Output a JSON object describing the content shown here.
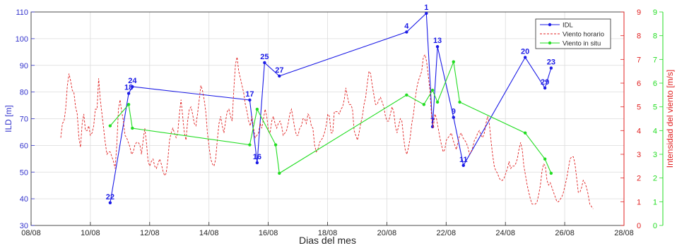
{
  "chart_data": {
    "type": "line",
    "xlabel": "Dias del mes",
    "x_ticks": [
      "08/08",
      "10/08",
      "12/08",
      "14/08",
      "16/08",
      "18/08",
      "20/08",
      "22/08",
      "24/08",
      "26/08",
      "28/08"
    ],
    "xlim": [
      "08/08",
      "28/08"
    ],
    "grid": true,
    "legend_position": "top-right",
    "axes": {
      "left": {
        "label": "ILD [m]",
        "ylim": [
          30,
          110
        ],
        "ticks": [
          30,
          40,
          50,
          60,
          70,
          80,
          90,
          100,
          110
        ],
        "color": "#3333cc"
      },
      "right1": {
        "label": "Intensidad del viento [m/s]",
        "ylim": [
          0,
          9
        ],
        "ticks": [
          0,
          1,
          2,
          3,
          4,
          5,
          6,
          7,
          8,
          9
        ],
        "color": "#e02020"
      },
      "right2": {
        "label": "",
        "ylim": [
          0,
          9
        ],
        "ticks": [
          0,
          1,
          2,
          3,
          4,
          5,
          6,
          7,
          8,
          9
        ],
        "color": "#22dd22"
      }
    },
    "series": [
      {
        "name": "IDL",
        "axis": "left",
        "color": "#1a1ae6",
        "style": "solid-markers",
        "points": [
          {
            "x": "10/08 16:00",
            "y": 38.5,
            "label": "22"
          },
          {
            "x": "11/08 07:00",
            "y": 79.5,
            "label": "18"
          },
          {
            "x": "11/08 10:00",
            "y": 82,
            "label": "24"
          },
          {
            "x": "15/08 09:00",
            "y": 77,
            "label": "17"
          },
          {
            "x": "15/08 15:00",
            "y": 53.5,
            "label": "16"
          },
          {
            "x": "15/08 21:00",
            "y": 91,
            "label": "25"
          },
          {
            "x": "16/08 09:00",
            "y": 86,
            "label": "27"
          },
          {
            "x": "20/08 16:00",
            "y": 102.5,
            "label": "4"
          },
          {
            "x": "21/08 08:00",
            "y": 109.5,
            "label": "1"
          },
          {
            "x": "21/08 13:00",
            "y": 67,
            "label": "7"
          },
          {
            "x": "21/08 17:00",
            "y": 97,
            "label": "13"
          },
          {
            "x": "22/08 06:00",
            "y": 70.5,
            "label": "9"
          },
          {
            "x": "22/08 14:00",
            "y": 52.5,
            "label": "11"
          },
          {
            "x": "24/08 16:00",
            "y": 93,
            "label": "20"
          },
          {
            "x": "25/08 08:00",
            "y": 81.5,
            "label": "29"
          },
          {
            "x": "25/08 13:00",
            "y": 89,
            "label": "23"
          }
        ]
      },
      {
        "name": "Viento horario",
        "axis": "right1",
        "color": "#e02020",
        "style": "dashed",
        "x_start": "09/08 00:00",
        "x_end": "26/08 23:00",
        "values": [
          3.7,
          4.3,
          4.4,
          4.9,
          5.9,
          6.4,
          6.1,
          5.7,
          5.6,
          5.0,
          4.7,
          3.7,
          3.3,
          4.3,
          4.7,
          4.0,
          4.0,
          4.2,
          3.8,
          3.9,
          4.2,
          4.9,
          4.9,
          6.2,
          5.3,
          4.7,
          4.1,
          3.5,
          3.0,
          3.1,
          3.1,
          2.9,
          2.7,
          2.4,
          3.4,
          4.9,
          5.3,
          4.8,
          4.4,
          3.8,
          3.7,
          3.5,
          3.3,
          3.0,
          3.1,
          3.4,
          3.5,
          3.5,
          3.4,
          3.0,
          3.6,
          4.1,
          3.5,
          2.7,
          2.5,
          2.7,
          2.8,
          2.5,
          2.4,
          2.6,
          2.8,
          2.6,
          2.3,
          2.1,
          2.2,
          2.8,
          3.6,
          3.9,
          4.1,
          3.9,
          3.7,
          3.9,
          4.7,
          5.3,
          4.6,
          3.9,
          3.6,
          4.4,
          4.9,
          5.0,
          4.7,
          4.3,
          4.2,
          4.7,
          5.3,
          5.9,
          5.7,
          5.3,
          4.8,
          3.9,
          3.3,
          2.8,
          2.6,
          2.5,
          2.8,
          3.6,
          4.3,
          4.6,
          4.2,
          3.9,
          4.4,
          4.8,
          4.9,
          4.6,
          4.4,
          5.7,
          6.8,
          7.1,
          6.5,
          6.2,
          5.9,
          5.6,
          5.1,
          4.8,
          4.4,
          4.2,
          4.6,
          4.1,
          3.7,
          3.8,
          3.9,
          4.3,
          4.1,
          4.5,
          4.9,
          4.6,
          4.0,
          3.9,
          4.4,
          4.6,
          4.3,
          4.1,
          4.3,
          4.4,
          4.2,
          3.8,
          3.9,
          4.0,
          4.3,
          4.7,
          4.9,
          4.5,
          4.1,
          3.8,
          3.8,
          4.1,
          4.2,
          4.5,
          4.5,
          4.3,
          4.7,
          4.6,
          4.2,
          4.1,
          3.4,
          3.1,
          3.2,
          3.5,
          3.6,
          3.7,
          3.9,
          4.2,
          4.7,
          4.6,
          3.9,
          3.9,
          4.8,
          4.8,
          4.8,
          4.7,
          4.9,
          5.0,
          5.3,
          5.8,
          5.4,
          5.1,
          5.1,
          4.9,
          4.0,
          3.8,
          3.6,
          3.9,
          4.3,
          4.6,
          5.1,
          5.4,
          6.0,
          6.5,
          6.4,
          5.9,
          5.5,
          5.1,
          5.1,
          5.3,
          5.4,
          5.2,
          5.0,
          4.6,
          4.4,
          4.4,
          4.7,
          5.0,
          4.8,
          4.2,
          3.9,
          4.2,
          4.5,
          4.4,
          3.7,
          3.2,
          3.0,
          3.3,
          3.7,
          4.3,
          4.7,
          5.3,
          5.8,
          6.1,
          6.3,
          6.5,
          7.1,
          7.2,
          6.9,
          6.3,
          5.7,
          4.6,
          4.1,
          4.7,
          4.5,
          4.1,
          3.7,
          3.4,
          3.1,
          3.2,
          3.6,
          3.7,
          3.8,
          3.9,
          3.6,
          3.4,
          3.2,
          3.5,
          3.8,
          3.9,
          3.7,
          3.6,
          3.5,
          3.3,
          3.0,
          3.1,
          3.3,
          3.6,
          3.7,
          3.9,
          4.0,
          3.8,
          3.7,
          3.9,
          4.3,
          4.6,
          4.3,
          3.6,
          3.0,
          2.5,
          2.3,
          2.2,
          2.0,
          1.9,
          1.9,
          2.0,
          2.2,
          2.4,
          2.7,
          2.4,
          2.5,
          2.5,
          2.6,
          2.8,
          3.2,
          3.5,
          3.2,
          2.5,
          2.1,
          1.7,
          1.4,
          1.1,
          0.9,
          0.9,
          0.9,
          1.0,
          1.3,
          1.7,
          2.3,
          2.6,
          2.5,
          1.9,
          1.7,
          1.8,
          1.6,
          1.4,
          1.2,
          1.0,
          1.0,
          1.1,
          1.2,
          1.4,
          1.7,
          2.0,
          2.4,
          2.8,
          2.9,
          2.9,
          2.6,
          2.0,
          1.4,
          1.4,
          1.6,
          1.9,
          1.8,
          1.6,
          1.3,
          0.9,
          0.8,
          0.7
        ]
      },
      {
        "name": "Viento in situ",
        "axis": "right2",
        "color": "#22dd22",
        "style": "solid-markers",
        "points": [
          {
            "x": "10/08 16:00",
            "y": 4.2
          },
          {
            "x": "11/08 07:00",
            "y": 5.1
          },
          {
            "x": "11/08 10:00",
            "y": 4.1
          },
          {
            "x": "15/08 09:00",
            "y": 3.4
          },
          {
            "x": "15/08 15:00",
            "y": 4.9
          },
          {
            "x": "16/08 06:00",
            "y": 3.4
          },
          {
            "x": "16/08 09:00",
            "y": 2.2
          },
          {
            "x": "20/08 16:00",
            "y": 5.5
          },
          {
            "x": "21/08 06:00",
            "y": 5.1
          },
          {
            "x": "21/08 13:00",
            "y": 5.7
          },
          {
            "x": "21/08 17:00",
            "y": 5.2
          },
          {
            "x": "22/08 06:00",
            "y": 6.9
          },
          {
            "x": "22/08 11:00",
            "y": 5.2
          },
          {
            "x": "24/08 16:00",
            "y": 3.9
          },
          {
            "x": "25/08 08:00",
            "y": 2.8
          },
          {
            "x": "25/08 13:00",
            "y": 2.2
          }
        ]
      }
    ]
  }
}
